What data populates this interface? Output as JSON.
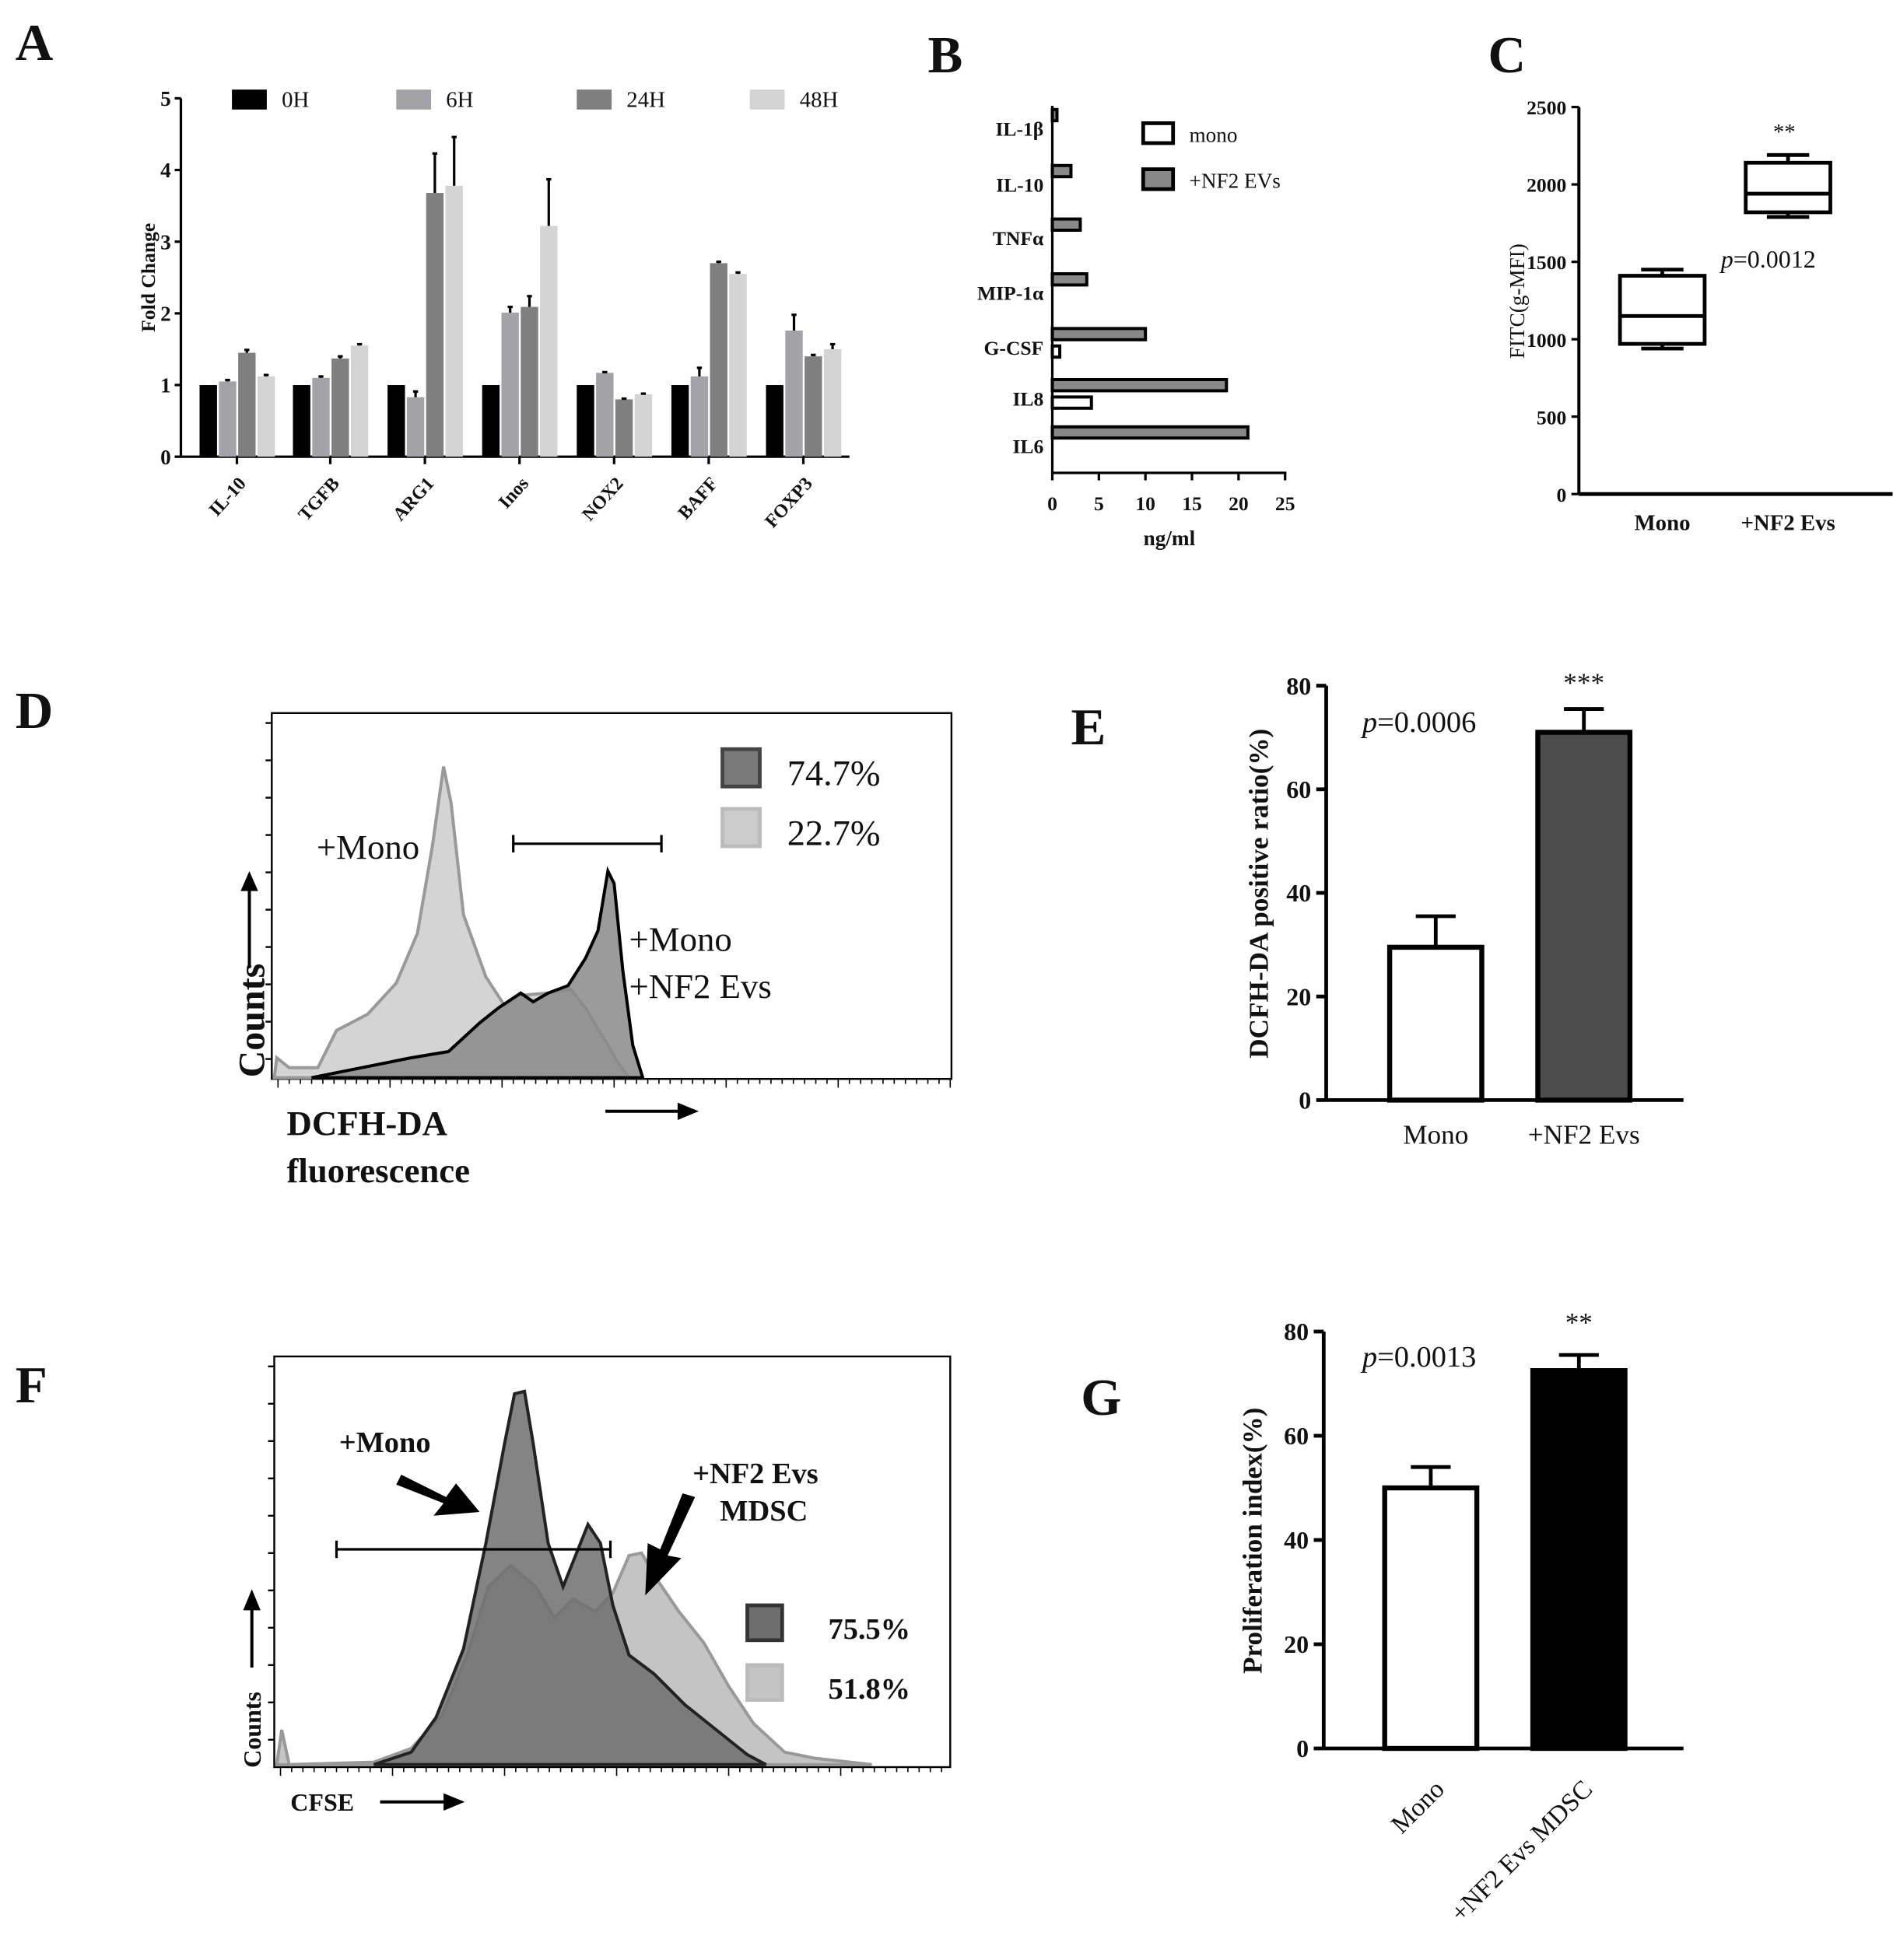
{
  "panel_letters": {
    "A": "A",
    "B": "B",
    "C": "C",
    "D": "D",
    "E": "E",
    "F": "F",
    "G": "G"
  },
  "chart_data": [
    {
      "id": "A",
      "type": "bar",
      "ylabel": "Fold Change",
      "ylim": [
        0,
        5
      ],
      "yticks": [
        "0",
        "1",
        "2",
        "3",
        "4",
        "5"
      ],
      "categories": [
        "IL-10",
        "TGFB",
        "ARG1",
        "Inos",
        "NOX2",
        "BAFF",
        "FOXP3"
      ],
      "legend_position": "top",
      "series": [
        {
          "name": "0H",
          "color": "#000000",
          "values": [
            1,
            1,
            1,
            1,
            1,
            1,
            1
          ],
          "errors": [
            0,
            0,
            0,
            0,
            0,
            0,
            0
          ]
        },
        {
          "name": "6H",
          "color": "#a3a3a7",
          "values": [
            1.05,
            1.1,
            0.83,
            2.01,
            1.17,
            1.12,
            1.76
          ],
          "errors": [
            0.02,
            0.02,
            0.08,
            0.08,
            0.01,
            0.12,
            0.22
          ]
        },
        {
          "name": "24H",
          "color": "#7f7f7f",
          "values": [
            1.45,
            1.37,
            3.68,
            2.09,
            0.8,
            2.7,
            1.4
          ],
          "errors": [
            0.04,
            0.03,
            0.55,
            0.15,
            0.01,
            0.02,
            0.02
          ]
        },
        {
          "name": "48H",
          "color": "#d4d4d4",
          "values": [
            1.12,
            1.55,
            3.78,
            3.22,
            0.87,
            2.55,
            1.5
          ],
          "errors": [
            0.02,
            0.02,
            0.68,
            0.65,
            0.01,
            0.02,
            0.07
          ]
        }
      ]
    },
    {
      "id": "B",
      "type": "bar",
      "orientation": "horizontal",
      "xlabel": "ng/ml",
      "xlim": [
        0,
        25
      ],
      "xticks": [
        "0",
        "5",
        "10",
        "15",
        "20",
        "25"
      ],
      "categories": [
        "IL-1β",
        "IL-10",
        "TNFα",
        "MIP-1α",
        "G-CSF",
        "IL8",
        "IL6"
      ],
      "legend_position": "top-right",
      "series": [
        {
          "name": "mono",
          "color": "#ffffff",
          "values": [
            0,
            0,
            0,
            0,
            0.8,
            4.2,
            0
          ]
        },
        {
          "name": "+NF2 EVs",
          "color": "#888888",
          "values": [
            0.5,
            2,
            3,
            3.7,
            10,
            18.7,
            21
          ]
        }
      ]
    },
    {
      "id": "C",
      "type": "box",
      "ylabel": "FITC(g-MFI)",
      "ylim": [
        0,
        2500
      ],
      "yticks": [
        "0",
        "500",
        "1000",
        "1500",
        "2000",
        "2500"
      ],
      "categories": [
        "Mono",
        "+NF2 Evs"
      ],
      "boxes": [
        {
          "min": 940,
          "q1": 970,
          "median": 1150,
          "q3": 1410,
          "max": 1450
        },
        {
          "min": 1790,
          "q1": 1820,
          "median": 1940,
          "q3": 2140,
          "max": 2190
        }
      ],
      "significance": "**",
      "p_prefix": "p",
      "p_value": "=0.0012"
    },
    {
      "id": "D",
      "type": "histogram",
      "xlabel_line1": "DCFH-DA",
      "xlabel_line2": "fluorescence",
      "ylabel": "Counts",
      "labels": {
        "mono": "+Mono",
        "nf2_line1": "+Mono",
        "nf2_line2": "+NF2 Evs"
      },
      "legend": [
        {
          "value": "74.7%",
          "color": "#7a7a7a"
        },
        {
          "value": "22.7%",
          "color": "#cccccc"
        }
      ]
    },
    {
      "id": "E",
      "type": "bar",
      "ylabel": "DCFH-DA positive ratio(%)",
      "ylim": [
        0,
        80
      ],
      "yticks": [
        "0",
        "20",
        "40",
        "60",
        "80"
      ],
      "categories": [
        "Mono",
        "+NF2 Evs"
      ],
      "values": [
        29.5,
        71
      ],
      "errors": [
        6,
        4.5
      ],
      "colors": [
        "#ffffff",
        "#4d4d4d"
      ],
      "significance": "***",
      "p_prefix": "p",
      "p_value": "=0.0006"
    },
    {
      "id": "F",
      "type": "histogram",
      "xlabel": "CFSE",
      "ylabel": "Counts",
      "labels": {
        "mono": "+Mono",
        "nf2_line1": "+NF2 Evs",
        "nf2_line2": "MDSC"
      },
      "legend": [
        {
          "value": "75.5%",
          "color": "#6e6e6e"
        },
        {
          "value": "51.8%",
          "color": "#c4c4c4"
        }
      ]
    },
    {
      "id": "G",
      "type": "bar",
      "ylabel": "Proliferation index(%)",
      "ylim": [
        0,
        80
      ],
      "yticks": [
        "0",
        "20",
        "40",
        "60",
        "80"
      ],
      "categories": [
        "Mono",
        "+NF2 Evs MDSC"
      ],
      "values": [
        50,
        72.5
      ],
      "errors": [
        4,
        3
      ],
      "colors": [
        "#ffffff",
        "#000000"
      ],
      "significance": "**",
      "p_prefix": "p",
      "p_value": "=0.0013"
    }
  ]
}
